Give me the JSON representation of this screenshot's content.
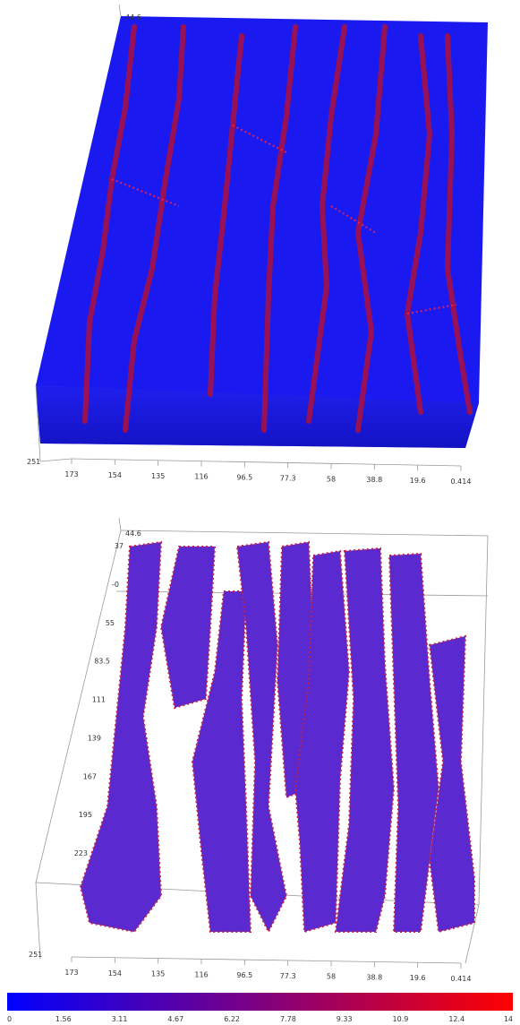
{
  "top_panel": {
    "corner_label": "44.6",
    "left_label": "251",
    "x_ticks": [
      "173",
      "154",
      "135",
      "116",
      "96.5",
      "77.3",
      "58",
      "38.8",
      "19.6",
      "0.414"
    ]
  },
  "bottom_panel": {
    "corner_label": "44.6",
    "left_ticks": [
      "37",
      "-0",
      "55",
      "83.5",
      "111",
      "139",
      "167",
      "195",
      "223"
    ],
    "left_label": "251",
    "x_ticks": [
      "173",
      "154",
      "135",
      "116",
      "96.5",
      "77.3",
      "58",
      "38.8",
      "19.6",
      "0.414"
    ]
  },
  "colorbar": {
    "ticks": [
      "0",
      "1.56",
      "3.11",
      "4.67",
      "6.22",
      "7.78",
      "9.33",
      "10.9",
      "12.4",
      "14"
    ]
  }
}
